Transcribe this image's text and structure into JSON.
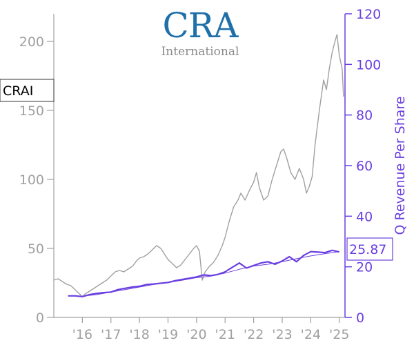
{
  "logo": {
    "main": "CRA",
    "sub": "International"
  },
  "chart_data": {
    "type": "line",
    "ticker": "CRAI",
    "ylabel_right": "Q Revenue Per Share",
    "last_value_label": "25.87",
    "colors": {
      "price": "#a0a0a0",
      "revenue": "#6a3fe0",
      "axis_right": "#6a3fe0",
      "axis_left": "#a0a0a0"
    },
    "x_range": [
      2015.0,
      2025.2
    ],
    "y_left": {
      "range": [
        0,
        220
      ],
      "ticks": [
        0,
        50,
        100,
        150,
        200
      ]
    },
    "y_right": {
      "range": [
        0,
        120
      ],
      "ticks": [
        0,
        20,
        40,
        60,
        80,
        100,
        120
      ]
    },
    "x_ticks": [
      {
        "x": 2016,
        "label": "'16"
      },
      {
        "x": 2017,
        "label": "'17"
      },
      {
        "x": 2018,
        "label": "'18"
      },
      {
        "x": 2019,
        "label": "'19"
      },
      {
        "x": 2020,
        "label": "'20"
      },
      {
        "x": 2021,
        "label": "'21"
      },
      {
        "x": 2022,
        "label": "'22"
      },
      {
        "x": 2023,
        "label": "'23"
      },
      {
        "x": 2024,
        "label": "'24"
      },
      {
        "x": 2025,
        "label": "'25"
      }
    ],
    "series": [
      {
        "axis": "left",
        "points": [
          [
            2015.0,
            27
          ],
          [
            2015.15,
            28
          ],
          [
            2015.3,
            26
          ],
          [
            2015.45,
            24
          ],
          [
            2015.6,
            23
          ],
          [
            2015.75,
            20
          ],
          [
            2015.9,
            17
          ],
          [
            2016.0,
            15
          ],
          [
            2016.1,
            17
          ],
          [
            2016.25,
            19
          ],
          [
            2016.4,
            21
          ],
          [
            2016.55,
            23
          ],
          [
            2016.7,
            25
          ],
          [
            2016.85,
            27
          ],
          [
            2017.0,
            30
          ],
          [
            2017.15,
            33
          ],
          [
            2017.3,
            34
          ],
          [
            2017.45,
            33
          ],
          [
            2017.6,
            35
          ],
          [
            2017.75,
            37
          ],
          [
            2017.9,
            41
          ],
          [
            2018.0,
            43
          ],
          [
            2018.15,
            44
          ],
          [
            2018.3,
            46
          ],
          [
            2018.45,
            49
          ],
          [
            2018.6,
            52
          ],
          [
            2018.75,
            50
          ],
          [
            2018.9,
            45
          ],
          [
            2019.0,
            42
          ],
          [
            2019.15,
            39
          ],
          [
            2019.3,
            36
          ],
          [
            2019.45,
            38
          ],
          [
            2019.6,
            42
          ],
          [
            2019.75,
            46
          ],
          [
            2019.9,
            50
          ],
          [
            2020.0,
            52
          ],
          [
            2020.1,
            48
          ],
          [
            2020.2,
            27
          ],
          [
            2020.3,
            33
          ],
          [
            2020.45,
            37
          ],
          [
            2020.6,
            40
          ],
          [
            2020.75,
            45
          ],
          [
            2020.9,
            52
          ],
          [
            2021.0,
            58
          ],
          [
            2021.15,
            70
          ],
          [
            2021.3,
            80
          ],
          [
            2021.45,
            85
          ],
          [
            2021.55,
            90
          ],
          [
            2021.7,
            85
          ],
          [
            2021.85,
            92
          ],
          [
            2022.0,
            98
          ],
          [
            2022.1,
            105
          ],
          [
            2022.2,
            94
          ],
          [
            2022.35,
            85
          ],
          [
            2022.5,
            88
          ],
          [
            2022.65,
            100
          ],
          [
            2022.8,
            110
          ],
          [
            2022.95,
            120
          ],
          [
            2023.05,
            122
          ],
          [
            2023.15,
            116
          ],
          [
            2023.3,
            105
          ],
          [
            2023.45,
            100
          ],
          [
            2023.6,
            108
          ],
          [
            2023.75,
            100
          ],
          [
            2023.85,
            90
          ],
          [
            2023.95,
            95
          ],
          [
            2024.05,
            102
          ],
          [
            2024.15,
            125
          ],
          [
            2024.3,
            150
          ],
          [
            2024.45,
            172
          ],
          [
            2024.55,
            165
          ],
          [
            2024.65,
            180
          ],
          [
            2024.75,
            192
          ],
          [
            2024.85,
            200
          ],
          [
            2024.92,
            205
          ],
          [
            2025.0,
            190
          ],
          [
            2025.1,
            180
          ],
          [
            2025.15,
            160
          ]
        ]
      },
      {
        "axis": "right",
        "points": [
          [
            2015.5,
            8.5
          ],
          [
            2015.75,
            8.5
          ],
          [
            2016.0,
            8.2
          ],
          [
            2016.25,
            9.0
          ],
          [
            2016.5,
            9.5
          ],
          [
            2016.75,
            9.8
          ],
          [
            2017.0,
            10.0
          ],
          [
            2017.25,
            11.0
          ],
          [
            2017.5,
            11.5
          ],
          [
            2017.75,
            12.0
          ],
          [
            2018.0,
            12.3
          ],
          [
            2018.25,
            13.0
          ],
          [
            2018.5,
            13.2
          ],
          [
            2018.75,
            13.5
          ],
          [
            2019.0,
            13.8
          ],
          [
            2019.25,
            14.5
          ],
          [
            2019.5,
            15.0
          ],
          [
            2019.75,
            15.5
          ],
          [
            2020.0,
            16.0
          ],
          [
            2020.25,
            16.8
          ],
          [
            2020.5,
            16.5
          ],
          [
            2020.75,
            17.0
          ],
          [
            2021.0,
            18.0
          ],
          [
            2021.25,
            19.8
          ],
          [
            2021.5,
            21.5
          ],
          [
            2021.75,
            19.5
          ],
          [
            2022.0,
            20.5
          ],
          [
            2022.25,
            21.5
          ],
          [
            2022.5,
            22.0
          ],
          [
            2022.75,
            21.0
          ],
          [
            2023.0,
            22.3
          ],
          [
            2023.25,
            24.0
          ],
          [
            2023.5,
            22.0
          ],
          [
            2023.75,
            24.5
          ],
          [
            2024.0,
            26.0
          ],
          [
            2024.25,
            25.8
          ],
          [
            2024.5,
            25.6
          ],
          [
            2024.75,
            26.5
          ],
          [
            2025.0,
            25.87
          ]
        ]
      },
      {
        "axis": "right",
        "points": [
          [
            2015.5,
            8.5
          ],
          [
            2016.0,
            8.4
          ],
          [
            2016.5,
            9.0
          ],
          [
            2017.0,
            10.0
          ],
          [
            2017.5,
            11.0
          ],
          [
            2018.0,
            12.0
          ],
          [
            2018.5,
            13.0
          ],
          [
            2019.0,
            13.8
          ],
          [
            2019.5,
            14.7
          ],
          [
            2020.0,
            15.7
          ],
          [
            2020.5,
            16.3
          ],
          [
            2021.0,
            17.5
          ],
          [
            2021.5,
            19.0
          ],
          [
            2022.0,
            20.3
          ],
          [
            2022.5,
            21.0
          ],
          [
            2023.0,
            22.0
          ],
          [
            2023.5,
            23.2
          ],
          [
            2024.0,
            24.3
          ],
          [
            2024.5,
            25.2
          ],
          [
            2025.0,
            26.0
          ]
        ]
      }
    ]
  }
}
